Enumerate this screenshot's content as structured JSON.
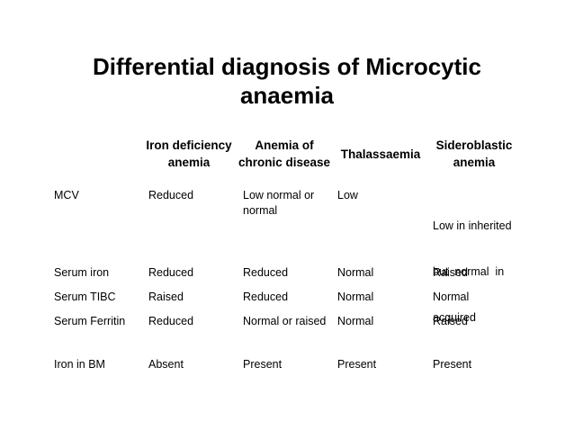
{
  "title": {
    "line1": "Differential diagnosis of Microcytic",
    "line2": "anaemia"
  },
  "table": {
    "columns": [
      {
        "lines": [
          "Iron deficiency",
          "anemia"
        ]
      },
      {
        "lines": [
          "Anemia of",
          "chronic disease"
        ]
      },
      {
        "lines": [
          "Thalassaemia"
        ]
      },
      {
        "lines": [
          "Sideroblastic",
          "anemia"
        ]
      }
    ],
    "rows": [
      {
        "label": "MCV",
        "cells": [
          {
            "lines": [
              "Reduced"
            ]
          },
          {
            "lines": [
              "Low normal or",
              "normal"
            ]
          },
          {
            "lines": [
              "Low"
            ]
          },
          {
            "lines": [
              "Low in inherited",
              "but  normal  in",
              "acquired"
            ]
          }
        ]
      },
      {
        "label": "Serum iron",
        "cells": [
          {
            "lines": [
              "Reduced"
            ]
          },
          {
            "lines": [
              "Reduced"
            ]
          },
          {
            "lines": [
              "Normal"
            ]
          },
          {
            "lines": [
              "Raised"
            ]
          }
        ]
      },
      {
        "label": "Serum TIBC",
        "cells": [
          {
            "lines": [
              "Raised"
            ]
          },
          {
            "lines": [
              "Reduced"
            ]
          },
          {
            "lines": [
              "Normal"
            ]
          },
          {
            "lines": [
              "Normal"
            ]
          }
        ]
      },
      {
        "label": "Serum Ferritin",
        "cells": [
          {
            "lines": [
              "Reduced"
            ]
          },
          {
            "lines": [
              "Normal or raised"
            ]
          },
          {
            "lines": [
              "Normal"
            ]
          },
          {
            "lines": [
              "Raised"
            ]
          }
        ]
      },
      {
        "label": "Iron in BM",
        "cells": [
          {
            "lines": [
              "Absent"
            ]
          },
          {
            "lines": [
              "Present"
            ]
          },
          {
            "lines": [
              "Present"
            ]
          },
          {
            "lines": [
              "Present"
            ]
          }
        ]
      }
    ]
  }
}
